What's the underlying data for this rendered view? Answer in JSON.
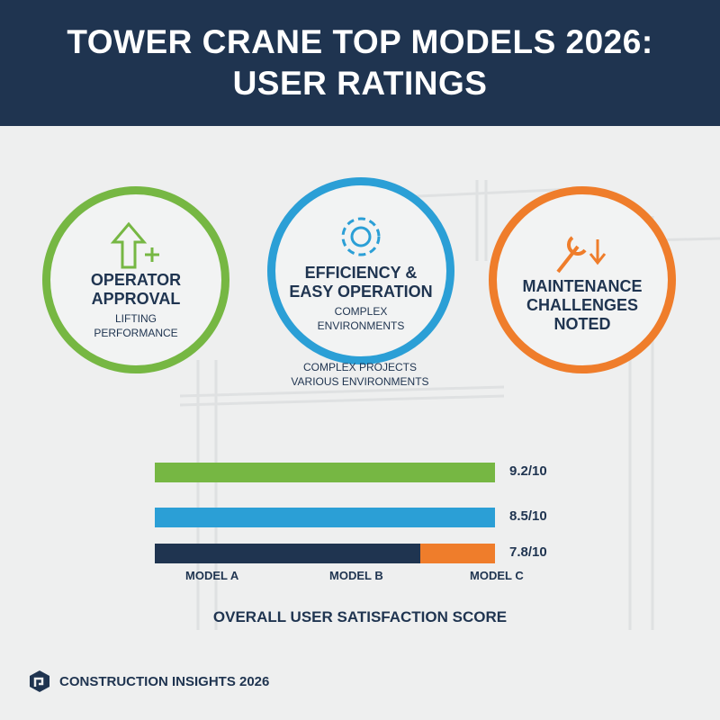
{
  "header": {
    "title": "TOWER CRANE TOP MODELS 2026: USER RATINGS"
  },
  "cards": [
    {
      "icon": "arrow-up-plus-icon",
      "title": "OPERATOR APPROVAL",
      "subtitle": "LIFTING PERFORMANCE",
      "color": "#76b743"
    },
    {
      "icon": "gear-icon",
      "title": "EFFICIENCY & EASY OPERATION",
      "subtitle": "COMPLEX ENVIRONMENTS",
      "color": "#2b9fd6"
    },
    {
      "icon": "wrench-arrow-down-icon",
      "title": "MAINTENANCE CHALLENGES NOTED",
      "subtitle": "",
      "color": "#ef7d2b"
    }
  ],
  "note": {
    "line1": "COMPLEX PROJECTS",
    "line2": "VARIOUS ENVIRONMENTS"
  },
  "chart_data": {
    "type": "bar",
    "title": "OVERALL USER SATISFACTION SCORE",
    "categories": [
      "MODEL A",
      "MODEL B",
      "MODEL C"
    ],
    "values": [
      9.2,
      8.5,
      7.8
    ],
    "value_labels": [
      "9.2/10",
      "8.5/10",
      "7.8/10"
    ],
    "max": 10,
    "colors": [
      "#76b743",
      "#2b9fd6",
      "#1f3450",
      "#ef7d2b"
    ]
  },
  "footer": {
    "brand": "CONSTRUCTION INSIGHTS 2026"
  }
}
